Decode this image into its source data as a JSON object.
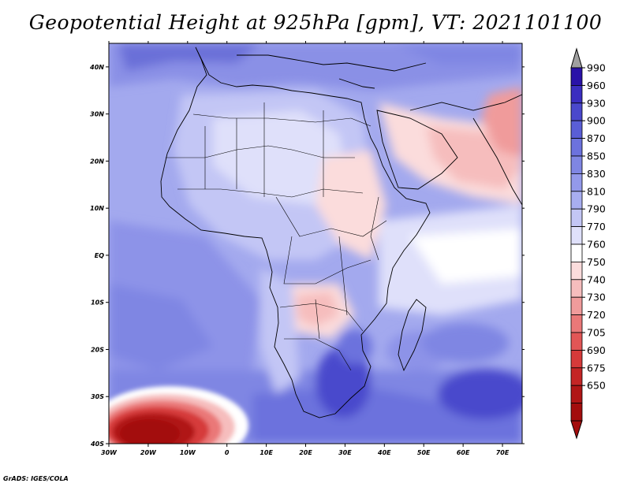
{
  "title": "Geopotential Height at 925hPa [gpm], VT: 2021101100",
  "credit": "GrADS: IGES/COLA",
  "map": {
    "variable": "Geopotential Height",
    "level": "925hPa",
    "units": "gpm",
    "valid_time": "2021101100",
    "lon_ticks": [
      "30W",
      "20W",
      "10W",
      "0",
      "10E",
      "20E",
      "30E",
      "40E",
      "50E",
      "60E",
      "70E"
    ],
    "lat_ticks": [
      "40N",
      "30N",
      "20N",
      "10N",
      "EQ",
      "10S",
      "20S",
      "30S",
      "40S"
    ],
    "lon_range": [
      -30,
      75
    ],
    "lat_range": [
      -40,
      45
    ]
  },
  "colorbar": {
    "levels": [
      "990",
      "960",
      "930",
      "900",
      "870",
      "850",
      "830",
      "810",
      "790",
      "770",
      "760",
      "750",
      "740",
      "730",
      "720",
      "705",
      "690",
      "675",
      "650"
    ],
    "colors": [
      "#2a12a8",
      "#3b2ec0",
      "#4a48cc",
      "#5a5ed6",
      "#6c72dd",
      "#7f86e3",
      "#9399ea",
      "#a8aef0",
      "#c3c6f5",
      "#dfe0fa",
      "#ffffff",
      "#fbdcdc",
      "#f6bdbd",
      "#f09b9b",
      "#ea7878",
      "#e25656",
      "#d63a3a",
      "#c42525",
      "#b01616",
      "#a30d0d"
    ],
    "arrow_top_color": "#a0a0a0",
    "arrow_bottom_color": "#a30d0d"
  }
}
